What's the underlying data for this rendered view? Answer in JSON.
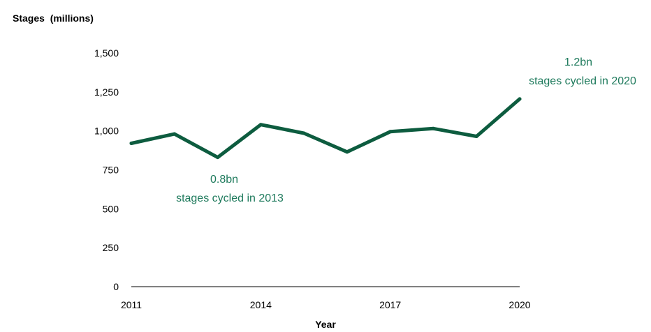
{
  "chart_data": {
    "type": "line",
    "ylabel": "Stages  (millions)",
    "xlabel": "Year",
    "x": [
      2011,
      2012,
      2013,
      2014,
      2015,
      2016,
      2017,
      2018,
      2019,
      2020
    ],
    "series": [
      {
        "values": [
          920,
          980,
          830,
          1040,
          985,
          865,
          995,
          1015,
          965,
          1205
        ]
      }
    ],
    "ylim": [
      0,
      1500
    ],
    "xlim": [
      2011,
      2020
    ],
    "y_ticks": [
      0,
      250,
      500,
      750,
      1000,
      1250,
      1500
    ],
    "y_tick_labels": [
      "0",
      "250",
      "500",
      "750",
      "1,000",
      "1,250",
      "1,500"
    ],
    "x_ticks": [
      2011,
      2014,
      2017,
      2020
    ],
    "x_tick_labels": [
      "2011",
      "2014",
      "2017",
      "2020"
    ],
    "grid": false,
    "line_color": "#0d5c3f",
    "annotation_color": "#1e7a5c",
    "annotations": [
      {
        "x": 2013,
        "value": "0.8bn",
        "text": "stages cycled in 2013"
      },
      {
        "x": 2020,
        "value": "1.2bn",
        "text": "stages cycled in 2020"
      }
    ]
  }
}
